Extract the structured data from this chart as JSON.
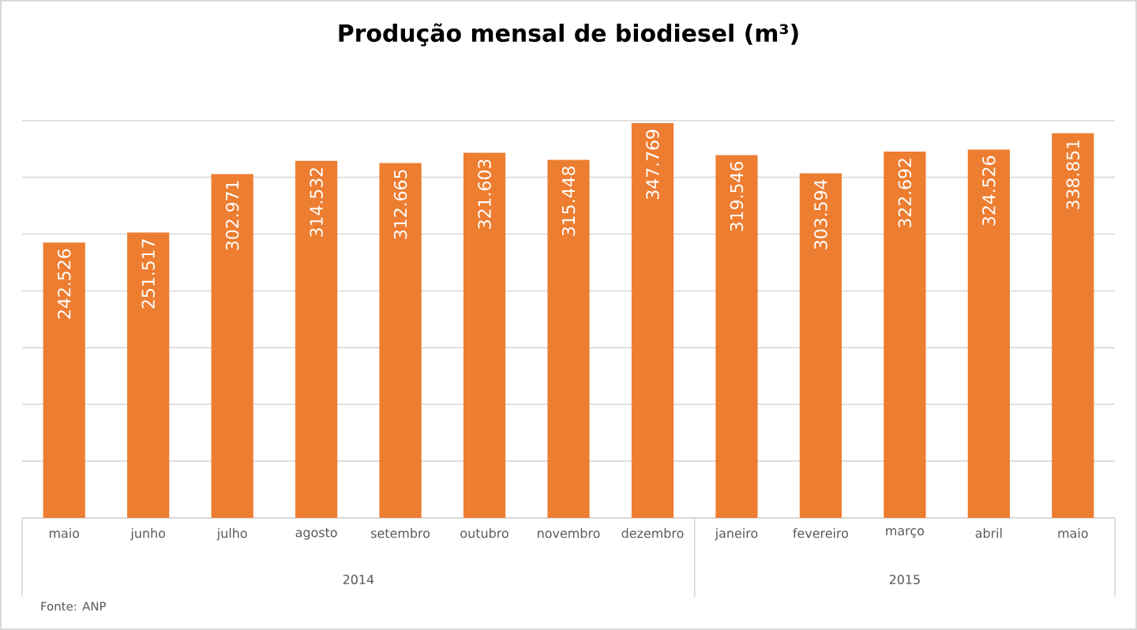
{
  "chart_data": {
    "type": "bar",
    "title": "Produção mensal de biodiesel (m³)",
    "categories": [
      "maio",
      "junho",
      "julho",
      "agosto",
      "setembro",
      "outubro",
      "novembro",
      "dezembro",
      "janeiro",
      "fevereiro",
      "março",
      "abril",
      "maio"
    ],
    "values": [
      242526,
      251517,
      302971,
      314532,
      312665,
      321603,
      315448,
      347769,
      319546,
      303594,
      322692,
      324526,
      338851
    ],
    "value_labels": [
      "242.526",
      "251.517",
      "302.971",
      "314.532",
      "312.665",
      "321.603",
      "315.448",
      "347.769",
      "319.546",
      "303.594",
      "322.692",
      "324.526",
      "338.851"
    ],
    "color": "#ed7d31",
    "tick_labels": "x",
    "grid": "y",
    "annotations": [
      "2014",
      "2015",
      "Fonte: ANP"
    ]
  }
}
